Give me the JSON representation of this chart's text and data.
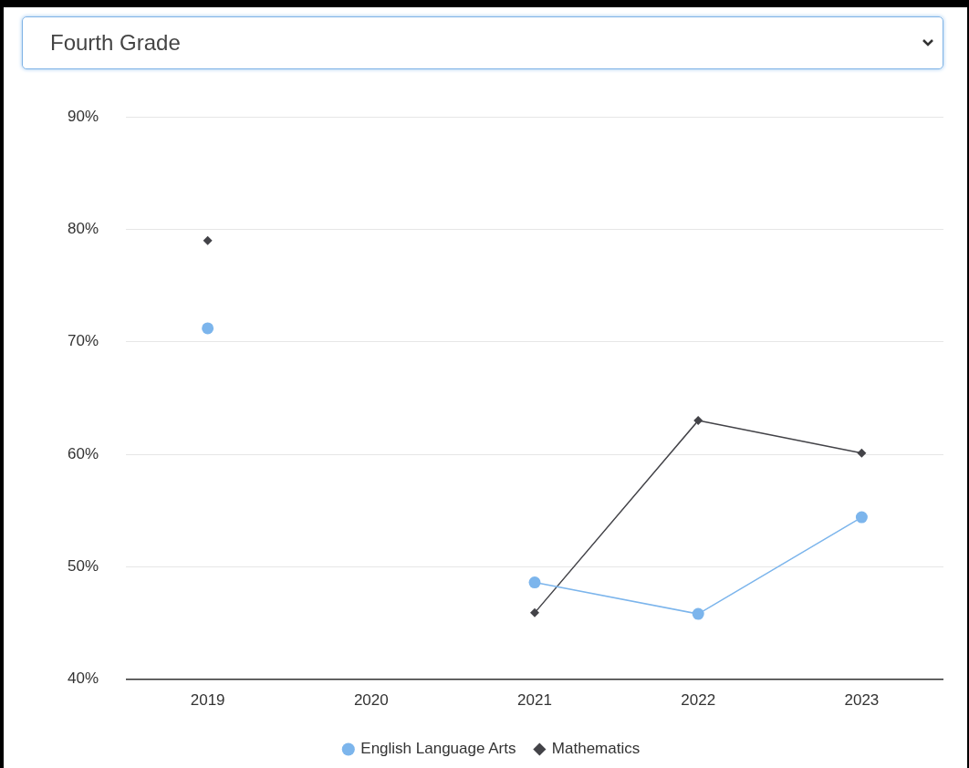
{
  "chart_data": {
    "type": "line",
    "title": "Fourth Grade",
    "categories": [
      "2019",
      "2020",
      "2021",
      "2022",
      "2023"
    ],
    "series": [
      {
        "name": "English Language Arts",
        "color": "#7cb5ec",
        "marker": "circle",
        "values": [
          71.2,
          null,
          48.6,
          45.8,
          54.4
        ]
      },
      {
        "name": "Mathematics",
        "color": "#434348",
        "marker": "diamond",
        "values": [
          79.0,
          null,
          45.9,
          63.0,
          60.1
        ]
      }
    ],
    "ylim": [
      40,
      90
    ],
    "yticks": [
      {
        "value": 40,
        "label": "40%"
      },
      {
        "value": 50,
        "label": "50%"
      },
      {
        "value": 60,
        "label": "60%"
      },
      {
        "value": 70,
        "label": "70%"
      },
      {
        "value": 80,
        "label": "80%"
      },
      {
        "value": 90,
        "label": "90%"
      }
    ],
    "grid": "y",
    "legend": "bottom"
  }
}
